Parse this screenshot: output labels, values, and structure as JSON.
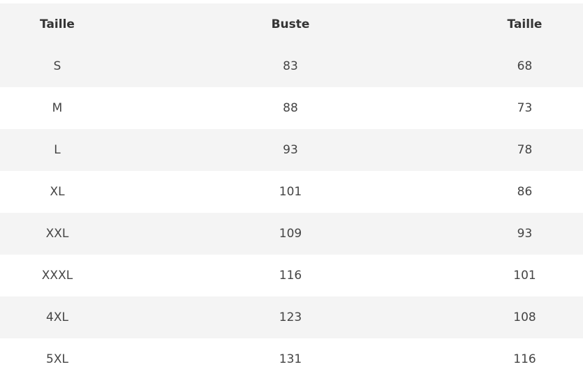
{
  "table": {
    "headers": [
      "Taille",
      "Buste",
      "Taille"
    ],
    "rows": [
      [
        "S",
        "83",
        "68"
      ],
      [
        "M",
        "88",
        "73"
      ],
      [
        "L",
        "93",
        "78"
      ],
      [
        "XL",
        "101",
        "86"
      ],
      [
        "XXL",
        "109",
        "93"
      ],
      [
        "XXXL",
        "116",
        "101"
      ],
      [
        "4XL",
        "123",
        "108"
      ],
      [
        "5XL",
        "131",
        "116"
      ]
    ]
  }
}
